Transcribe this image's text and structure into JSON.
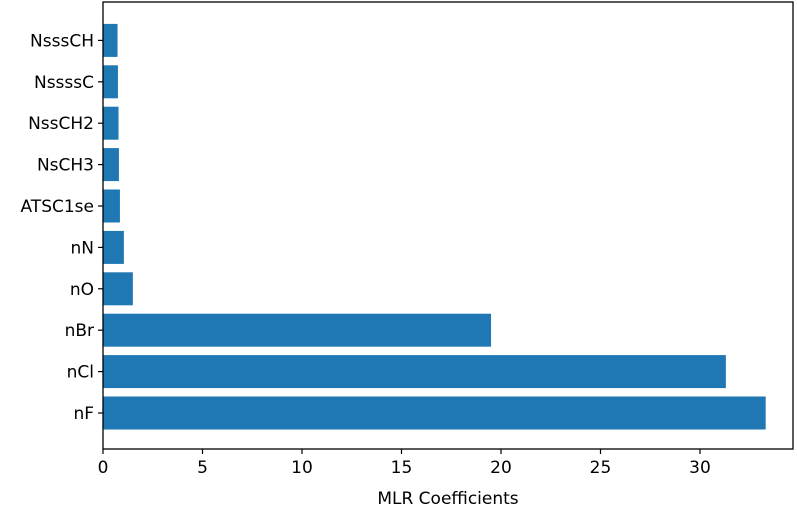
{
  "chart_data": {
    "type": "bar",
    "orientation": "horizontal",
    "categories": [
      "nF",
      "nCl",
      "nBr",
      "nO",
      "nN",
      "ATSC1se",
      "NsCH3",
      "NssCH2",
      "NssssC",
      "NsssCH"
    ],
    "values": [
      33.3,
      31.3,
      19.5,
      1.5,
      1.05,
      0.85,
      0.8,
      0.78,
      0.75,
      0.73
    ],
    "title": "",
    "xlabel": "MLR Coefficients",
    "ylabel": "",
    "xlim": [
      0,
      35
    ],
    "xticks": [
      "0",
      "5",
      "10",
      "15",
      "20",
      "25",
      "30"
    ],
    "xtick_values": [
      0,
      5,
      10,
      15,
      20,
      25,
      30
    ],
    "grid": false,
    "bar_color": "#1f77b4"
  }
}
